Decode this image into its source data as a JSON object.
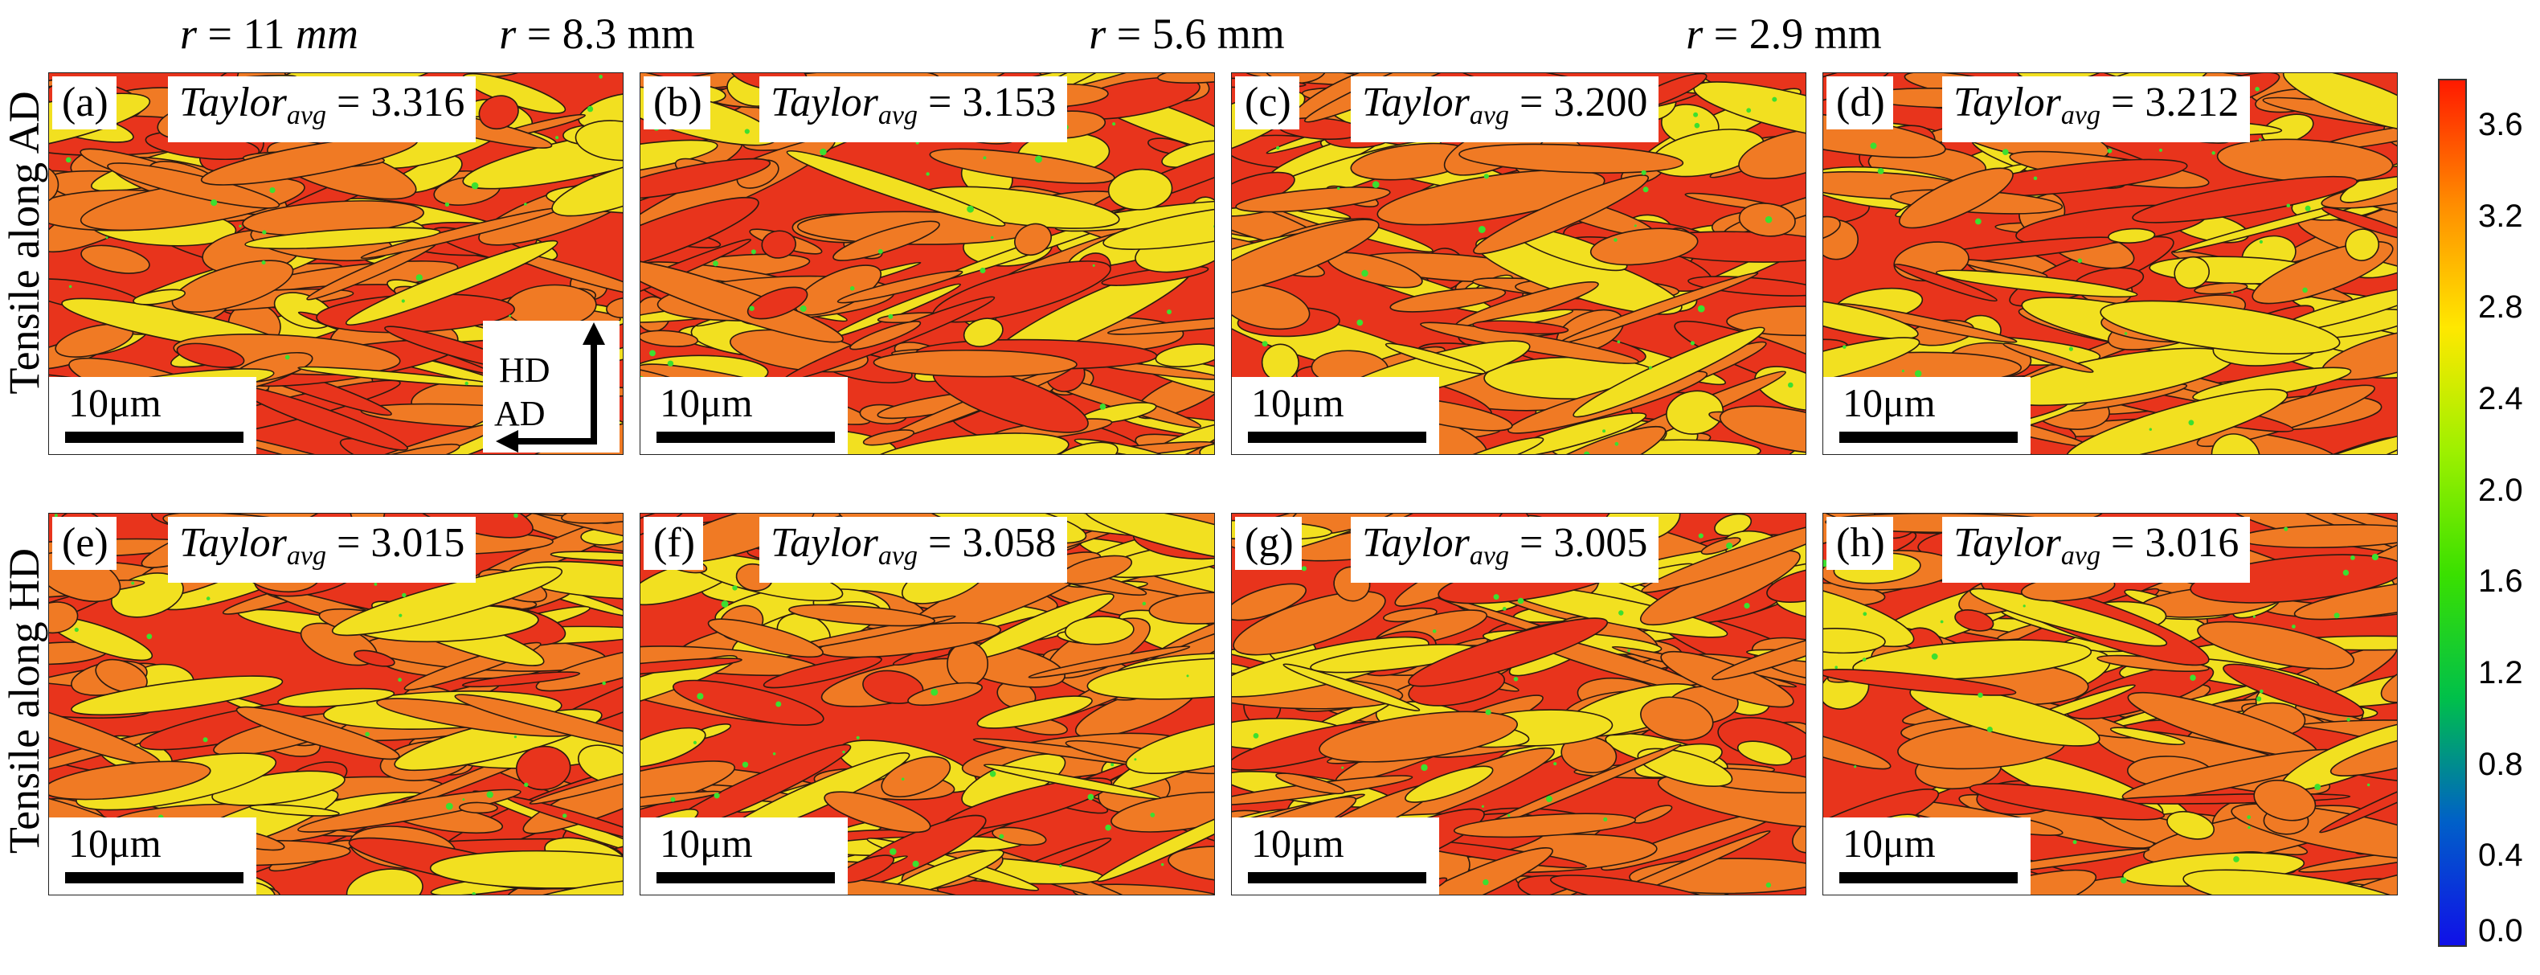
{
  "columns": [
    {
      "prefix": "r",
      "value": "11",
      "unit": "mm"
    },
    {
      "prefix": "r",
      "value": "8.3",
      "unit": "mm"
    },
    {
      "prefix": "r",
      "value": "5.6",
      "unit": "mm"
    },
    {
      "prefix": "r",
      "value": "2.9",
      "unit": "mm"
    }
  ],
  "rows": [
    "Tensile along AD",
    "Tensile along HD"
  ],
  "taylor_symbol": "Taylor",
  "taylor_subscript": "avg",
  "panels": [
    {
      "label": "(a)",
      "taylor_avg": "3.316",
      "scale": "10μm"
    },
    {
      "label": "(b)",
      "taylor_avg": "3.153",
      "scale": "10μm"
    },
    {
      "label": "(c)",
      "taylor_avg": "3.200",
      "scale": "10μm"
    },
    {
      "label": "(d)",
      "taylor_avg": "3.212",
      "scale": "10μm"
    },
    {
      "label": "(e)",
      "taylor_avg": "3.015",
      "scale": "10μm"
    },
    {
      "label": "(f)",
      "taylor_avg": "3.058",
      "scale": "10μm"
    },
    {
      "label": "(g)",
      "taylor_avg": "3.005",
      "scale": "10μm"
    },
    {
      "label": "(h)",
      "taylor_avg": "3.016",
      "scale": "10μm"
    }
  ],
  "axes": {
    "vertical": "HD",
    "horizontal": "AD"
  },
  "colorbar": {
    "ticks": [
      "3.6",
      "3.2",
      "2.8",
      "2.4",
      "2.0",
      "1.6",
      "1.2",
      "0.8",
      "0.4",
      "0.0"
    ],
    "min": 0.0,
    "max": 3.8,
    "colors": [
      "#ff1a00",
      "#ff8c00",
      "#ffe800",
      "#9ef000",
      "#3ae000",
      "#00c04a",
      "#0060c8",
      "#1010e8"
    ]
  },
  "map_colors": {
    "red": "#e8341c",
    "orange": "#f07a24",
    "yellow": "#f2e020",
    "green": "#3ce030",
    "boundary": "#2a1a10"
  }
}
